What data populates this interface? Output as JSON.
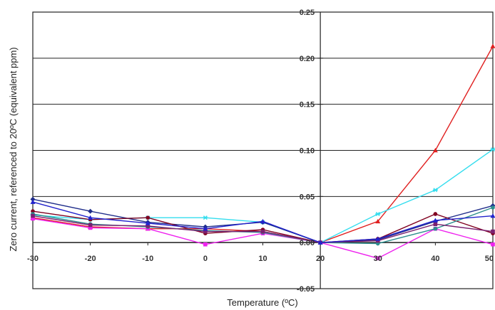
{
  "chart_data": {
    "type": "line",
    "title": "",
    "xlabel": "Temperature (ºC)",
    "ylabel": "Zero current, referenced to 20ºC (equivalent ppm)",
    "x": [
      -30,
      -20,
      -10,
      0,
      10,
      20,
      30,
      40,
      50
    ],
    "xlim": [
      -30,
      50
    ],
    "ylim": [
      -0.05,
      0.25
    ],
    "xticks": [
      "-30",
      "-20",
      "-10",
      "0",
      "10",
      "20",
      "30",
      "40",
      "50"
    ],
    "yticks": [
      "-0.05",
      "0.00",
      "0.05",
      "0.10",
      "0.15",
      "0.20",
      "0.25"
    ],
    "grid": "horizontal",
    "legend": "none",
    "series": [
      {
        "color": "#e02020",
        "marker": "triangle",
        "values": [
          0.027,
          0.017,
          0.015,
          0.015,
          0.012,
          0.0,
          0.023,
          0.1,
          0.213
        ]
      },
      {
        "color": "#33ddee",
        "marker": "star",
        "values": [
          0.03,
          0.025,
          0.027,
          0.027,
          0.022,
          0.0,
          0.031,
          0.057,
          0.101
        ]
      },
      {
        "color": "#1f2d8a",
        "marker": "diamond",
        "values": [
          0.047,
          0.034,
          0.022,
          0.017,
          0.022,
          0.0,
          0.003,
          0.023,
          0.04
        ]
      },
      {
        "color": "#800020",
        "marker": "circle",
        "values": [
          0.034,
          0.025,
          0.027,
          0.01,
          0.014,
          0.0,
          0.004,
          0.031,
          0.01
        ]
      },
      {
        "color": "#ee22ee",
        "marker": "square",
        "values": [
          0.026,
          0.016,
          0.015,
          -0.002,
          0.01,
          0.0,
          -0.017,
          0.015,
          -0.002
        ]
      },
      {
        "color": "#2b8e8e",
        "marker": "circle",
        "values": [
          0.031,
          0.02,
          0.017,
          0.013,
          0.011,
          0.0,
          -0.001,
          0.015,
          0.038
        ]
      },
      {
        "color": "#7a2070",
        "marker": "square",
        "values": [
          0.029,
          0.019,
          0.018,
          0.012,
          0.012,
          0.0,
          0.002,
          0.02,
          0.012
        ]
      },
      {
        "color": "#2222cc",
        "marker": "triangle",
        "values": [
          0.044,
          0.027,
          0.021,
          0.015,
          0.023,
          0.0,
          0.004,
          0.024,
          0.029
        ]
      }
    ]
  }
}
